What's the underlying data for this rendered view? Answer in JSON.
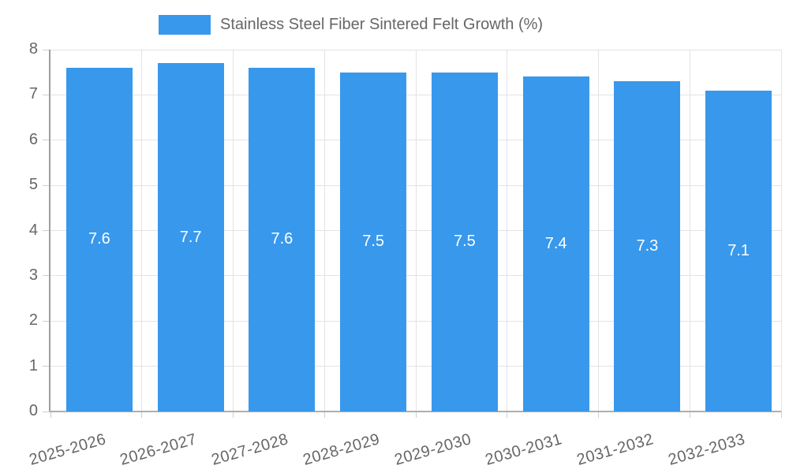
{
  "chart_data": {
    "type": "bar",
    "title": "Stainless Steel Fiber Sintered Felt Growth (%)",
    "categories": [
      "2025-2026",
      "2026-2027",
      "2027-2028",
      "2028-2029",
      "2029-2030",
      "2030-2031",
      "2031-2032",
      "2032-2033"
    ],
    "values": [
      7.6,
      7.7,
      7.6,
      7.5,
      7.5,
      7.4,
      7.3,
      7.1
    ],
    "value_labels": [
      "7.6",
      "7.7",
      "7.6",
      "7.5",
      "7.5",
      "7.4",
      "7.3",
      "7.1"
    ],
    "xlabel": "",
    "ylabel": "",
    "ylim": [
      0,
      8
    ],
    "yticks": [
      "0",
      "1",
      "2",
      "3",
      "4",
      "5",
      "6",
      "7",
      "8"
    ],
    "grid": true,
    "legend_position": "top",
    "colors": {
      "bar": "#3898ec",
      "bar_label": "#ffffff",
      "axis_text": "#666666",
      "grid_line": "#e3e3e3",
      "tick_line": "#cfcfcf",
      "y_axis_line": "#9e9e9e",
      "x_axis_line": "#aeaeae",
      "background": "#ffffff"
    }
  }
}
